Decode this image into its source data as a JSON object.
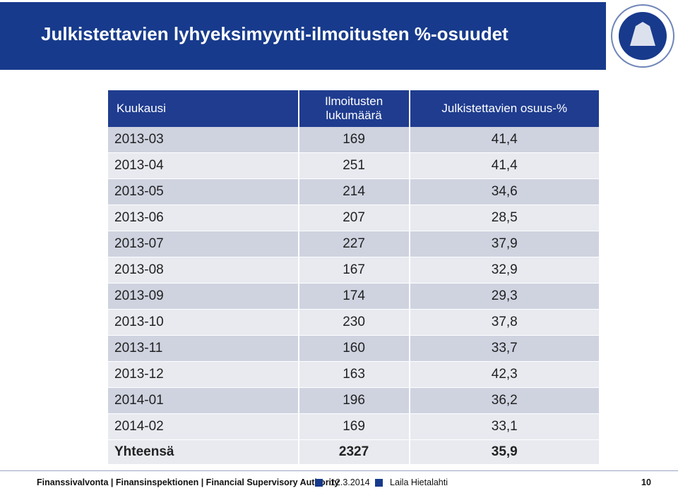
{
  "header": {
    "title": "Julkistettavien lyhyeksimyynti-ilmoitusten %-osuudet"
  },
  "table": {
    "columns": [
      "Kuukausi",
      "Ilmoitusten lukumäärä",
      "Julkistettavien osuus-%"
    ],
    "rows": [
      [
        "2013-03",
        "169",
        "41,4"
      ],
      [
        "2013-04",
        "251",
        "41,4"
      ],
      [
        "2013-05",
        "214",
        "34,6"
      ],
      [
        "2013-06",
        "207",
        "28,5"
      ],
      [
        "2013-07",
        "227",
        "37,9"
      ],
      [
        "2013-08",
        "167",
        "32,9"
      ],
      [
        "2013-09",
        "174",
        "29,3"
      ],
      [
        "2013-10",
        "230",
        "37,8"
      ],
      [
        "2013-11",
        "160",
        "33,7"
      ],
      [
        "2013-12",
        "163",
        "42,3"
      ],
      [
        "2014-01",
        "196",
        "36,2"
      ],
      [
        "2014-02",
        "169",
        "33,1"
      ]
    ],
    "total": [
      "Yhteensä",
      "2327",
      "35,9"
    ]
  },
  "footer": {
    "organization": "Finanssivalvonta | Finansinspektionen | Financial Supervisory Authority",
    "date": "12.3.2014",
    "author": "Laila Hietalahti",
    "page": "10"
  }
}
